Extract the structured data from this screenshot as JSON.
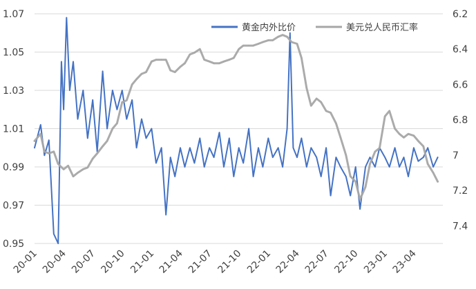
{
  "chart_data": {
    "type": "line",
    "title": "",
    "xlabel": "",
    "ylabel": "",
    "grid": "horizontal",
    "legend_placement": "top-right",
    "x_tick_labels": [
      "20-01",
      "20-04",
      "20-07",
      "20-10",
      "21-01",
      "21-04",
      "21-07",
      "21-10",
      "22-01",
      "22-04",
      "22-07",
      "22-10",
      "23-01",
      "23-04"
    ],
    "y_left": {
      "ticks": [
        "0.95",
        "0.97",
        "0.99",
        "1.01",
        "1.03",
        "1.05",
        "1.07"
      ],
      "range": [
        0.95,
        1.07
      ]
    },
    "y_right": {
      "ticks": [
        "6.2",
        "6.4",
        "6.6",
        "6.8",
        "7",
        "7.2",
        "7.4"
      ],
      "range": [
        6.2,
        7.5
      ],
      "inverted": true
    },
    "series": [
      {
        "name": "黄金内外比价",
        "axis": "left",
        "color": "#4472C4",
        "values": [
          [
            "2020-01",
            1.0
          ],
          [
            "2020-01-20",
            1.012
          ],
          [
            "2020-02",
            0.996
          ],
          [
            "2020-02-15",
            1.004
          ],
          [
            "2020-03",
            0.955
          ],
          [
            "2020-03-15",
            0.95
          ],
          [
            "2020-03-25",
            1.045
          ],
          [
            "2020-04",
            1.02
          ],
          [
            "2020-04-10",
            1.068
          ],
          [
            "2020-04-20",
            1.03
          ],
          [
            "2020-05",
            1.045
          ],
          [
            "2020-05-15",
            1.015
          ],
          [
            "2020-06",
            1.03
          ],
          [
            "2020-06-15",
            1.005
          ],
          [
            "2020-07",
            1.025
          ],
          [
            "2020-07-15",
            0.998
          ],
          [
            "2020-08",
            1.04
          ],
          [
            "2020-08-15",
            1.01
          ],
          [
            "2020-09",
            1.03
          ],
          [
            "2020-09-15",
            1.02
          ],
          [
            "2020-10",
            1.03
          ],
          [
            "2020-10-15",
            1.015
          ],
          [
            "2020-11",
            1.025
          ],
          [
            "2020-11-15",
            1.0
          ],
          [
            "2020-12",
            1.015
          ],
          [
            "2020-12-15",
            1.005
          ],
          [
            "2021-01",
            1.01
          ],
          [
            "2021-01-15",
            0.992
          ],
          [
            "2021-02",
            1.0
          ],
          [
            "2021-02-15",
            0.965
          ],
          [
            "2021-03",
            0.995
          ],
          [
            "2021-03-15",
            0.985
          ],
          [
            "2021-04",
            1.0
          ],
          [
            "2021-04-15",
            0.99
          ],
          [
            "2021-05",
            1.0
          ],
          [
            "2021-05-15",
            0.992
          ],
          [
            "2021-06",
            1.005
          ],
          [
            "2021-06-15",
            0.99
          ],
          [
            "2021-07",
            1.0
          ],
          [
            "2021-07-15",
            0.995
          ],
          [
            "2021-08",
            1.008
          ],
          [
            "2021-08-15",
            0.99
          ],
          [
            "2021-09",
            1.005
          ],
          [
            "2021-09-15",
            0.985
          ],
          [
            "2021-10",
            1.0
          ],
          [
            "2021-10-15",
            0.992
          ],
          [
            "2021-11",
            1.01
          ],
          [
            "2021-11-15",
            0.985
          ],
          [
            "2021-12",
            1.0
          ],
          [
            "2021-12-15",
            0.99
          ],
          [
            "2022-01",
            1.005
          ],
          [
            "2022-01-15",
            0.995
          ],
          [
            "2022-02",
            1.0
          ],
          [
            "2022-02-15",
            0.99
          ],
          [
            "2022-03",
            1.01
          ],
          [
            "2022-03-10",
            1.06
          ],
          [
            "2022-03-20",
            1.0
          ],
          [
            "2022-04",
            0.995
          ],
          [
            "2022-04-15",
            1.005
          ],
          [
            "2022-05",
            0.99
          ],
          [
            "2022-05-15",
            1.0
          ],
          [
            "2022-06",
            0.995
          ],
          [
            "2022-06-15",
            0.985
          ],
          [
            "2022-07",
            1.0
          ],
          [
            "2022-07-15",
            0.975
          ],
          [
            "2022-08",
            0.995
          ],
          [
            "2022-08-15",
            0.99
          ],
          [
            "2022-09",
            0.985
          ],
          [
            "2022-09-15",
            0.975
          ],
          [
            "2022-10",
            0.99
          ],
          [
            "2022-10-15",
            0.968
          ],
          [
            "2022-11",
            0.99
          ],
          [
            "2022-11-15",
            0.995
          ],
          [
            "2022-12",
            0.99
          ],
          [
            "2022-12-15",
            1.0
          ],
          [
            "2023-01",
            0.995
          ],
          [
            "2023-01-15",
            0.99
          ],
          [
            "2023-02",
            1.0
          ],
          [
            "2023-02-15",
            0.99
          ],
          [
            "2023-03",
            0.995
          ],
          [
            "2023-03-15",
            0.985
          ],
          [
            "2023-04",
            1.0
          ],
          [
            "2023-04-15",
            0.993
          ],
          [
            "2023-05",
            0.995
          ],
          [
            "2023-05-15",
            1.0
          ],
          [
            "2023-06",
            0.99
          ],
          [
            "2023-06-15",
            0.995
          ]
        ]
      },
      {
        "name": "美元兑人民币汇率",
        "axis": "right",
        "color": "#A6A6A6",
        "values": [
          [
            "2020-01",
            6.92
          ],
          [
            "2020-01-20",
            6.88
          ],
          [
            "2020-02",
            6.98
          ],
          [
            "2020-02-15",
            6.99
          ],
          [
            "2020-03",
            6.98
          ],
          [
            "2020-03-15",
            7.05
          ],
          [
            "2020-04",
            7.08
          ],
          [
            "2020-04-15",
            7.06
          ],
          [
            "2020-05",
            7.12
          ],
          [
            "2020-05-15",
            7.1
          ],
          [
            "2020-06",
            7.08
          ],
          [
            "2020-06-15",
            7.07
          ],
          [
            "2020-07",
            7.02
          ],
          [
            "2020-07-15",
            6.99
          ],
          [
            "2020-08",
            6.95
          ],
          [
            "2020-08-15",
            6.92
          ],
          [
            "2020-09",
            6.85
          ],
          [
            "2020-09-15",
            6.82
          ],
          [
            "2020-10",
            6.7
          ],
          [
            "2020-10-15",
            6.69
          ],
          [
            "2020-11",
            6.6
          ],
          [
            "2020-11-15",
            6.57
          ],
          [
            "2020-12",
            6.54
          ],
          [
            "2020-12-15",
            6.53
          ],
          [
            "2021-01",
            6.47
          ],
          [
            "2021-01-15",
            6.46
          ],
          [
            "2021-02",
            6.46
          ],
          [
            "2021-02-15",
            6.46
          ],
          [
            "2021-03",
            6.52
          ],
          [
            "2021-03-15",
            6.53
          ],
          [
            "2021-04",
            6.5
          ],
          [
            "2021-04-15",
            6.48
          ],
          [
            "2021-05",
            6.43
          ],
          [
            "2021-05-15",
            6.42
          ],
          [
            "2021-06",
            6.4
          ],
          [
            "2021-06-15",
            6.46
          ],
          [
            "2021-07",
            6.47
          ],
          [
            "2021-07-15",
            6.48
          ],
          [
            "2021-08",
            6.48
          ],
          [
            "2021-08-15",
            6.47
          ],
          [
            "2021-09",
            6.46
          ],
          [
            "2021-09-15",
            6.45
          ],
          [
            "2021-10",
            6.4
          ],
          [
            "2021-10-15",
            6.38
          ],
          [
            "2021-11",
            6.38
          ],
          [
            "2021-11-15",
            6.38
          ],
          [
            "2021-12",
            6.37
          ],
          [
            "2021-12-15",
            6.36
          ],
          [
            "2022-01",
            6.35
          ],
          [
            "2022-01-15",
            6.35
          ],
          [
            "2022-02",
            6.33
          ],
          [
            "2022-02-15",
            6.32
          ],
          [
            "2022-03",
            6.33
          ],
          [
            "2022-03-15",
            6.36
          ],
          [
            "2022-04",
            6.37
          ],
          [
            "2022-04-15",
            6.45
          ],
          [
            "2022-05",
            6.62
          ],
          [
            "2022-05-15",
            6.72
          ],
          [
            "2022-06",
            6.68
          ],
          [
            "2022-06-15",
            6.7
          ],
          [
            "2022-07",
            6.75
          ],
          [
            "2022-07-15",
            6.76
          ],
          [
            "2022-08",
            6.82
          ],
          [
            "2022-08-15",
            6.9
          ],
          [
            "2022-09",
            7.0
          ],
          [
            "2022-09-15",
            7.12
          ],
          [
            "2022-10",
            7.15
          ],
          [
            "2022-10-15",
            7.25
          ],
          [
            "2022-11",
            7.18
          ],
          [
            "2022-11-15",
            7.05
          ],
          [
            "2022-12",
            6.98
          ],
          [
            "2022-12-15",
            6.96
          ],
          [
            "2023-01",
            6.78
          ],
          [
            "2023-01-15",
            6.75
          ],
          [
            "2023-02",
            6.85
          ],
          [
            "2023-02-15",
            6.88
          ],
          [
            "2023-03",
            6.9
          ],
          [
            "2023-03-15",
            6.88
          ],
          [
            "2023-04",
            6.89
          ],
          [
            "2023-04-15",
            6.92
          ],
          [
            "2023-05",
            6.95
          ],
          [
            "2023-05-15",
            7.05
          ],
          [
            "2023-06",
            7.1
          ],
          [
            "2023-06-15",
            7.15
          ]
        ]
      }
    ]
  }
}
